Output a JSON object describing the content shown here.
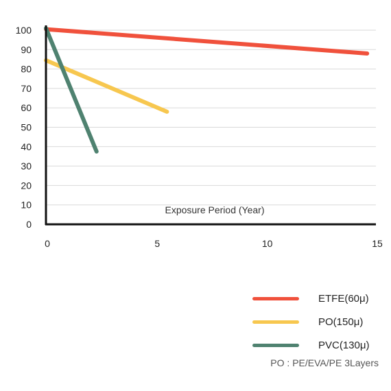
{
  "chart_data": {
    "type": "line",
    "xlabel": "Exposure Period (Year)",
    "ylabel": "",
    "xlim": [
      0,
      15
    ],
    "ylim": [
      0,
      100
    ],
    "x_ticks": [
      0,
      5,
      10,
      15
    ],
    "y_ticks": [
      0,
      10,
      20,
      30,
      40,
      50,
      60,
      70,
      80,
      90,
      100
    ],
    "grid": "horizontal",
    "legend_position": "bottom-right",
    "series": [
      {
        "name": "ETFE(60μ)",
        "color": "#f0513c",
        "x": [
          0,
          14.6
        ],
        "y": [
          100.5,
          88
        ]
      },
      {
        "name": "PO(150μ)",
        "color": "#f7c74f",
        "x": [
          0,
          5.5
        ],
        "y": [
          84.5,
          58
        ]
      },
      {
        "name": "PVC(130μ)",
        "color": "#4f8270",
        "x": [
          0,
          2.3
        ],
        "y": [
          101,
          37.5
        ]
      }
    ]
  },
  "note": "PO : PE/EVA/PE 3Layers"
}
